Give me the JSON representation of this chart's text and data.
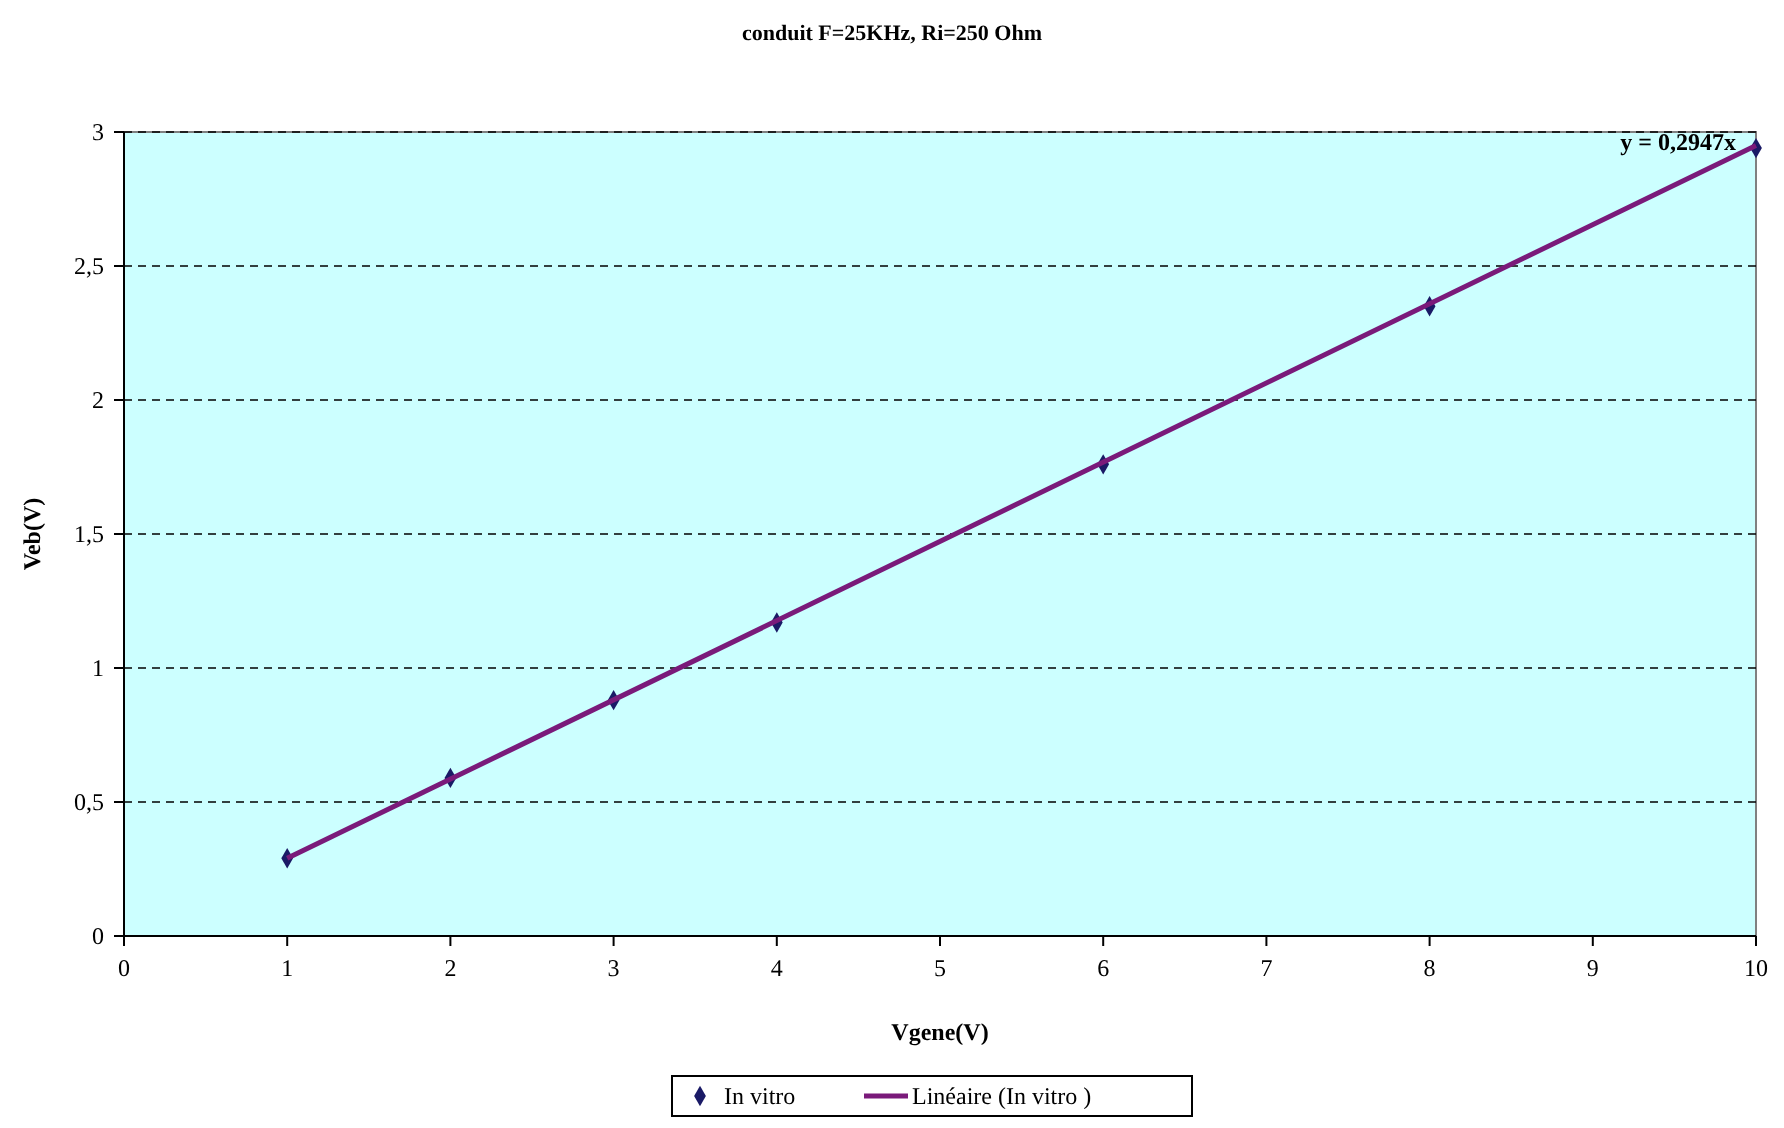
{
  "chart_data": {
    "type": "scatter",
    "title": "conduit F=25KHz, Ri=250 Ohm",
    "xlabel": "Vgene(V)",
    "ylabel": "Veb(V)",
    "xlim": [
      0,
      10
    ],
    "xticks": [
      0,
      1,
      2,
      3,
      4,
      5,
      6,
      7,
      8,
      9,
      10
    ],
    "ylim": [
      0,
      3
    ],
    "yticks": [
      0,
      {
        "value": 0.5,
        "label": "0,5"
      },
      1,
      {
        "value": 1.5,
        "label": "1,5"
      },
      2,
      {
        "value": 2.5,
        "label": "2,5"
      },
      3
    ],
    "grid": "y",
    "legend": "bottom",
    "series": [
      {
        "name": "In vitro",
        "marker": "diamond",
        "color": "#1a1a66",
        "x": [
          1,
          2,
          3,
          4,
          6,
          8,
          10
        ],
        "values": [
          0.29,
          0.59,
          0.88,
          1.17,
          1.76,
          2.35,
          2.94
        ]
      },
      {
        "name": "Linéaire (In vitro )",
        "type": "line",
        "color": "#7a1a7a",
        "x": [
          1,
          10
        ],
        "values": [
          0.29,
          2.95
        ]
      }
    ],
    "annotations": [
      {
        "text": "y = 0,2947x",
        "x": 10,
        "y": 2.947
      }
    ]
  }
}
